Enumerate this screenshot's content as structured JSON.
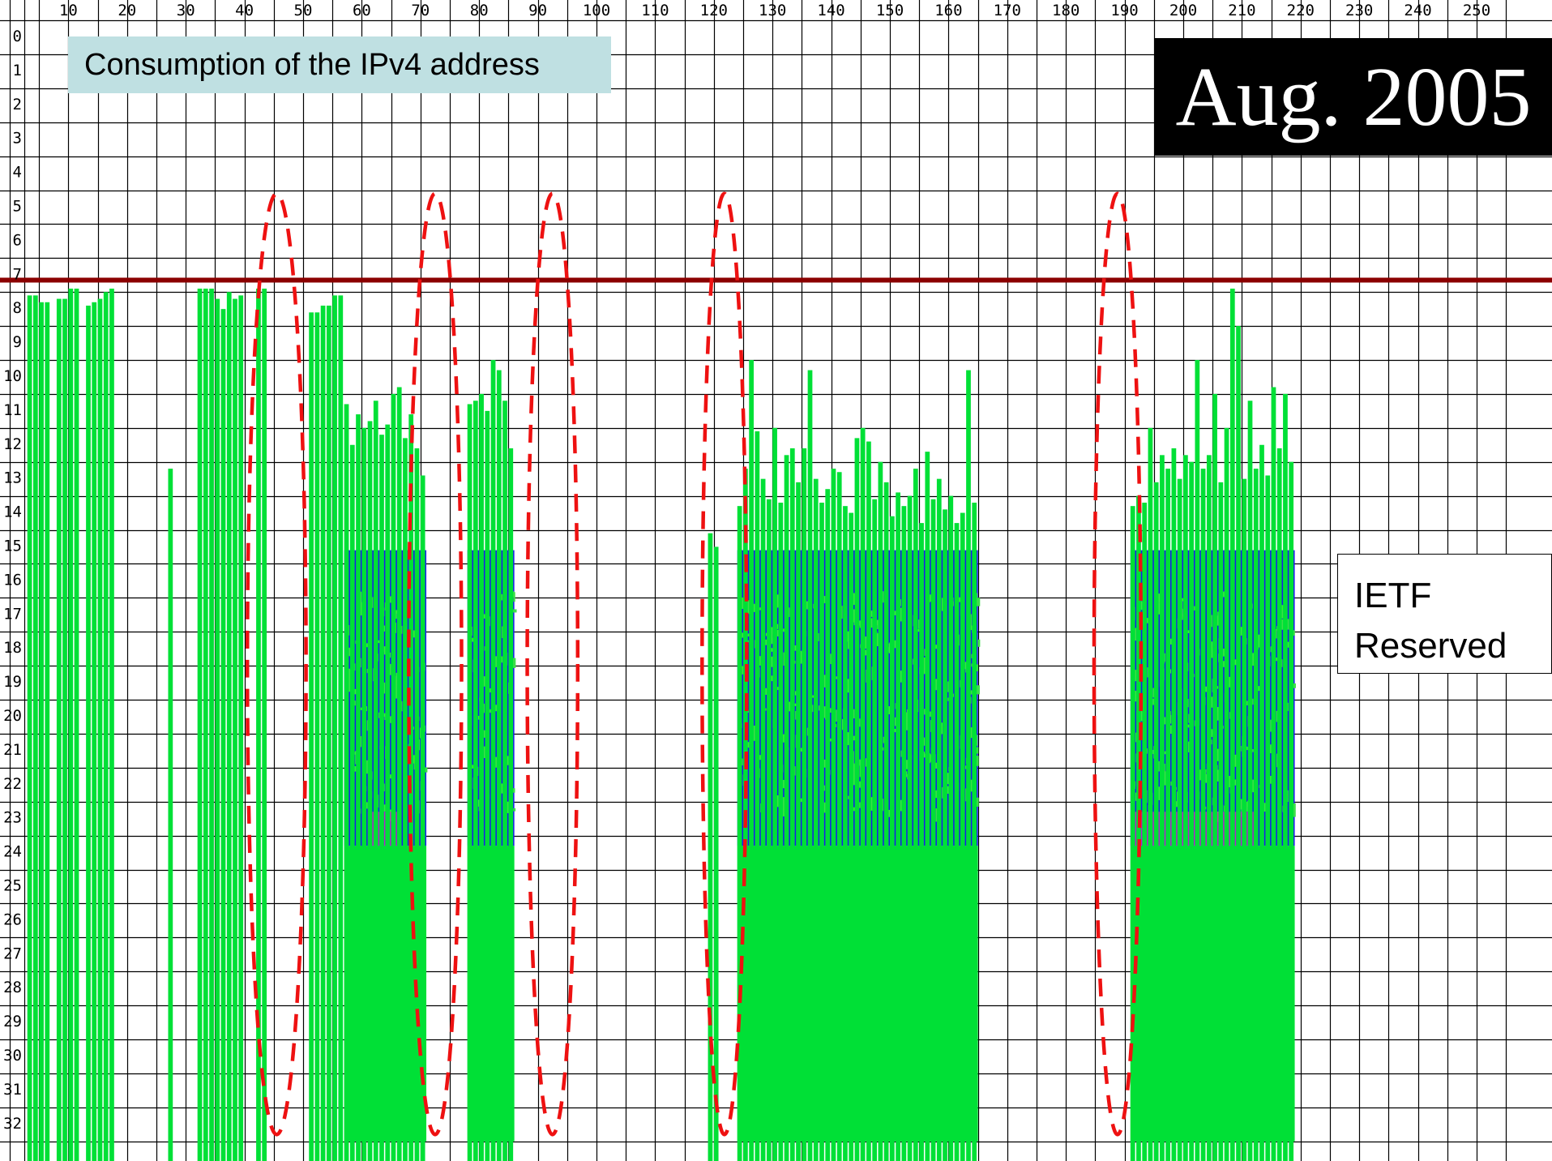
{
  "title": "Consumption of the IPv4 address",
  "date_label": "Aug. 2005",
  "reserved_label_line1": "IETF",
  "reserved_label_line2": "Reserved",
  "colors": {
    "grid": "#000000",
    "used_green": "#00e036",
    "used_green_light": "#3ddd4a",
    "dense_blue": "#1a1aee",
    "magenta": "#cc22cc",
    "limit_line": "#8b0000",
    "oval": "#ee1111",
    "title_bg": "#bfe0e2"
  },
  "chart_data": {
    "type": "heatmap",
    "x_ticks": [
      10,
      20,
      30,
      40,
      50,
      60,
      70,
      80,
      90,
      100,
      110,
      120,
      130,
      140,
      150,
      160,
      170,
      180,
      190,
      200,
      210,
      220,
      230,
      240,
      250
    ],
    "y_ticks": [
      0,
      1,
      2,
      3,
      4,
      5,
      6,
      7,
      8,
      9,
      10,
      11,
      12,
      13,
      14,
      15,
      16,
      17,
      18,
      19,
      20,
      21,
      22,
      23,
      24,
      25,
      26,
      27,
      28,
      29,
      30,
      31,
      32
    ],
    "xlim": [
      0,
      255
    ],
    "ylim": [
      0,
      33
    ],
    "grid": true,
    "limit_line_y": 7.65,
    "reserved_from_x": 224,
    "columns": [
      {
        "x": 3,
        "top": 8.1
      },
      {
        "x": 4,
        "top": 8.1
      },
      {
        "x": 5,
        "top": 8.3
      },
      {
        "x": 6,
        "top": 8.3
      },
      {
        "x": 8,
        "top": 8.2
      },
      {
        "x": 9,
        "top": 8.2
      },
      {
        "x": 10,
        "top": 7.9
      },
      {
        "x": 11,
        "top": 7.9
      },
      {
        "x": 13,
        "top": 8.4
      },
      {
        "x": 14,
        "top": 8.3
      },
      {
        "x": 15,
        "top": 8.2
      },
      {
        "x": 16,
        "top": 8.0
      },
      {
        "x": 17,
        "top": 7.9
      },
      {
        "x": 27,
        "top": 13.2
      },
      {
        "x": 32,
        "top": 7.9
      },
      {
        "x": 33,
        "top": 7.9
      },
      {
        "x": 34,
        "top": 7.9
      },
      {
        "x": 35,
        "top": 8.2
      },
      {
        "x": 36,
        "top": 8.5
      },
      {
        "x": 37,
        "top": 8.0
      },
      {
        "x": 38,
        "top": 8.2
      },
      {
        "x": 39,
        "top": 8.1
      },
      {
        "x": 42,
        "top": 7.9
      },
      {
        "x": 43,
        "top": 7.9
      },
      {
        "x": 51,
        "top": 8.6
      },
      {
        "x": 52,
        "top": 8.6
      },
      {
        "x": 53,
        "top": 8.4
      },
      {
        "x": 54,
        "top": 8.4
      },
      {
        "x": 55,
        "top": 8.1
      },
      {
        "x": 56,
        "top": 8.1
      },
      {
        "x": 57,
        "top": 11.3
      },
      {
        "x": 58,
        "top": 12.5
      },
      {
        "x": 59,
        "top": 11.6
      },
      {
        "x": 60,
        "top": 12.0
      },
      {
        "x": 61,
        "top": 11.8
      },
      {
        "x": 62,
        "top": 11.2
      },
      {
        "x": 63,
        "top": 12.2
      },
      {
        "x": 64,
        "top": 11.9
      },
      {
        "x": 65,
        "top": 11.0
      },
      {
        "x": 66,
        "top": 10.8
      },
      {
        "x": 67,
        "top": 12.3
      },
      {
        "x": 68,
        "top": 11.6
      },
      {
        "x": 69,
        "top": 12.6
      },
      {
        "x": 70,
        "top": 13.4
      },
      {
        "x": 78,
        "top": 11.3
      },
      {
        "x": 79,
        "top": 11.2
      },
      {
        "x": 80,
        "top": 11.0
      },
      {
        "x": 81,
        "top": 11.5
      },
      {
        "x": 82,
        "top": 10.0
      },
      {
        "x": 83,
        "top": 10.3
      },
      {
        "x": 84,
        "top": 11.2
      },
      {
        "x": 85,
        "top": 12.6
      },
      {
        "x": 119,
        "top": 15.1
      },
      {
        "x": 120,
        "top": 15.5
      },
      {
        "x": 124,
        "top": 14.3
      },
      {
        "x": 125,
        "top": 13.2
      },
      {
        "x": 126,
        "top": 10.0
      },
      {
        "x": 127,
        "top": 12.1
      },
      {
        "x": 128,
        "top": 13.5
      },
      {
        "x": 129,
        "top": 14.1
      },
      {
        "x": 130,
        "top": 12.0
      },
      {
        "x": 131,
        "top": 14.2
      },
      {
        "x": 132,
        "top": 12.8
      },
      {
        "x": 133,
        "top": 12.6
      },
      {
        "x": 134,
        "top": 13.6
      },
      {
        "x": 135,
        "top": 12.6
      },
      {
        "x": 136,
        "top": 10.3
      },
      {
        "x": 137,
        "top": 13.5
      },
      {
        "x": 138,
        "top": 14.2
      },
      {
        "x": 139,
        "top": 13.8
      },
      {
        "x": 140,
        "top": 13.2
      },
      {
        "x": 141,
        "top": 13.3
      },
      {
        "x": 142,
        "top": 14.3
      },
      {
        "x": 143,
        "top": 14.5
      },
      {
        "x": 144,
        "top": 12.3
      },
      {
        "x": 145,
        "top": 12.0
      },
      {
        "x": 146,
        "top": 12.4
      },
      {
        "x": 147,
        "top": 14.1
      },
      {
        "x": 148,
        "top": 13.0
      },
      {
        "x": 149,
        "top": 13.6
      },
      {
        "x": 150,
        "top": 14.6
      },
      {
        "x": 151,
        "top": 13.9
      },
      {
        "x": 152,
        "top": 14.3
      },
      {
        "x": 153,
        "top": 14.0
      },
      {
        "x": 154,
        "top": 13.2
      },
      {
        "x": 155,
        "top": 14.8
      },
      {
        "x": 156,
        "top": 12.7
      },
      {
        "x": 157,
        "top": 14.1
      },
      {
        "x": 158,
        "top": 13.5
      },
      {
        "x": 159,
        "top": 14.4
      },
      {
        "x": 160,
        "top": 14.0
      },
      {
        "x": 161,
        "top": 14.8
      },
      {
        "x": 162,
        "top": 14.5
      },
      {
        "x": 163,
        "top": 10.3
      },
      {
        "x": 164,
        "top": 14.2
      },
      {
        "x": 191,
        "top": 14.3
      },
      {
        "x": 192,
        "top": 14.0
      },
      {
        "x": 193,
        "top": 14.2
      },
      {
        "x": 194,
        "top": 12.0
      },
      {
        "x": 195,
        "top": 13.6
      },
      {
        "x": 196,
        "top": 12.8
      },
      {
        "x": 197,
        "top": 13.2
      },
      {
        "x": 198,
        "top": 12.6
      },
      {
        "x": 199,
        "top": 13.5
      },
      {
        "x": 200,
        "top": 12.8
      },
      {
        "x": 201,
        "top": 13.0
      },
      {
        "x": 202,
        "top": 10.0
      },
      {
        "x": 203,
        "top": 13.2
      },
      {
        "x": 204,
        "top": 12.8
      },
      {
        "x": 205,
        "top": 11.0
      },
      {
        "x": 206,
        "top": 13.6
      },
      {
        "x": 207,
        "top": 12.0
      },
      {
        "x": 208,
        "top": 7.9
      },
      {
        "x": 209,
        "top": 9.0
      },
      {
        "x": 210,
        "top": 13.5
      },
      {
        "x": 211,
        "top": 11.2
      },
      {
        "x": 212,
        "top": 13.2
      },
      {
        "x": 213,
        "top": 12.5
      },
      {
        "x": 214,
        "top": 13.4
      },
      {
        "x": 215,
        "top": 10.8
      },
      {
        "x": 216,
        "top": 12.6
      },
      {
        "x": 217,
        "top": 11.0
      },
      {
        "x": 218,
        "top": 13.0
      }
    ],
    "dense_blocks": [
      {
        "x0": 57,
        "x1": 71,
        "y0": 15.6,
        "y1": 24.3
      },
      {
        "x0": 78,
        "x1": 86,
        "y0": 15.6,
        "y1": 24.3
      },
      {
        "x0": 124,
        "x1": 165,
        "y0": 15.6,
        "y1": 24.3
      },
      {
        "x0": 191,
        "x1": 219,
        "y0": 15.6,
        "y1": 24.3
      }
    ],
    "magenta_bands": [
      {
        "x0": 61,
        "x1": 66,
        "y0": 23.3,
        "y1": 24.3
      },
      {
        "x0": 191,
        "x1": 212,
        "y0": 23.3,
        "y1": 24.3
      }
    ],
    "solid_blocks": [
      {
        "x0": 57,
        "x1": 71,
        "y0": 24.3,
        "y1": 33
      },
      {
        "x0": 78,
        "x1": 86,
        "y0": 24.3,
        "y1": 33
      },
      {
        "x0": 124,
        "x1": 165,
        "y0": 24.3,
        "y1": 33
      },
      {
        "x0": 191,
        "x1": 219,
        "y0": 24.3,
        "y1": 33
      }
    ],
    "highlight_ovals": [
      {
        "cx": 45.5,
        "ymin": 5.1,
        "ymax": 32.8,
        "half_width": 5.0
      },
      {
        "cx": 72.5,
        "ymin": 5.1,
        "ymax": 32.8,
        "half_width": 4.5
      },
      {
        "cx": 92.5,
        "ymin": 5.1,
        "ymax": 32.8,
        "half_width": 4.3
      },
      {
        "cx": 121.8,
        "ymin": 5.1,
        "ymax": 32.8,
        "half_width": 3.8
      },
      {
        "cx": 188.8,
        "ymin": 5.1,
        "ymax": 32.8,
        "half_width": 4.0
      }
    ]
  }
}
